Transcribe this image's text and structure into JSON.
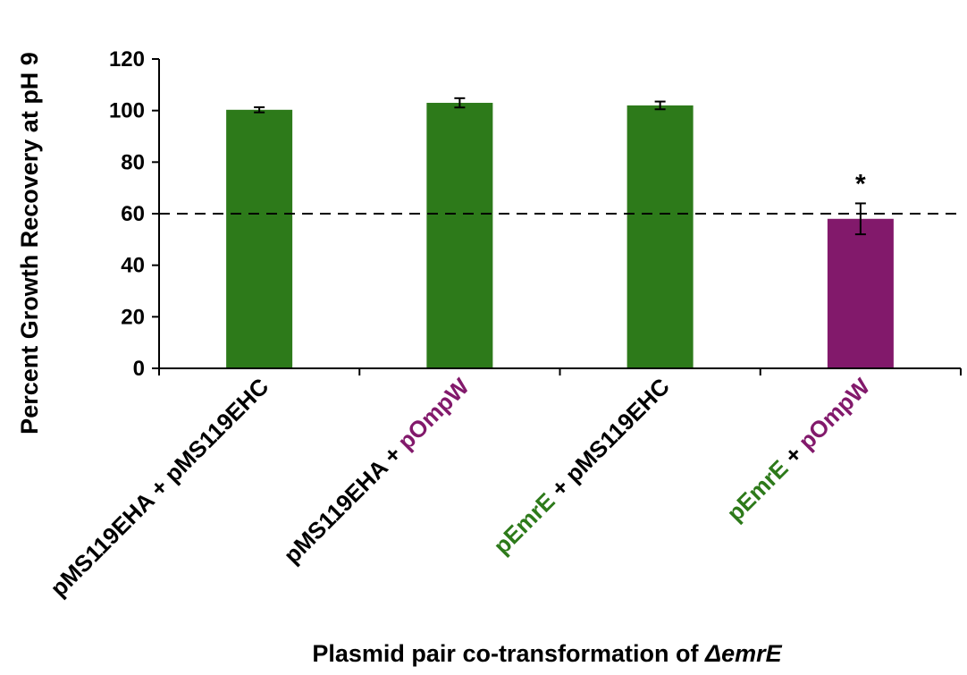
{
  "chart_data": {
    "type": "bar",
    "categories": [
      [
        {
          "text": "pMS119EHA",
          "color": "black"
        },
        {
          "text": " + ",
          "color": "black"
        },
        {
          "text": "pMS119EHC",
          "color": "black"
        }
      ],
      [
        {
          "text": "pMS119EHA",
          "color": "black"
        },
        {
          "text": " + ",
          "color": "black"
        },
        {
          "text": "pOmpW",
          "color": "purple"
        }
      ],
      [
        {
          "text": "pEmrE",
          "color": "green"
        },
        {
          "text": " + ",
          "color": "black"
        },
        {
          "text": "pMS119EHC",
          "color": "black"
        }
      ],
      [
        {
          "text": "pEmrE",
          "color": "green"
        },
        {
          "text": " + ",
          "color": "black"
        },
        {
          "text": "pOmpW",
          "color": "purple"
        }
      ]
    ],
    "values": [
      100.3,
      103.0,
      102.0,
      58.0
    ],
    "errors": [
      1.0,
      1.8,
      1.5,
      6.0
    ],
    "bar_colors": [
      "green",
      "green",
      "green",
      "purple"
    ],
    "annotations": [
      {
        "category_index": 3,
        "text": "*"
      }
    ],
    "reference_line": {
      "y": 60,
      "style": "dashed"
    },
    "ylabel": "Percent Growth Recovery at pH 9",
    "xlabel_prefix": "Plasmid pair co-transformation of ",
    "xlabel_italic": "ΔemrE",
    "ylim": [
      0,
      120
    ],
    "yticks": [
      0,
      20,
      40,
      60,
      80,
      100,
      120
    ],
    "grid": false,
    "legend": "none"
  },
  "colors": {
    "green": "#2d7a1a",
    "purple": "#82196b",
    "black": "#000000"
  }
}
